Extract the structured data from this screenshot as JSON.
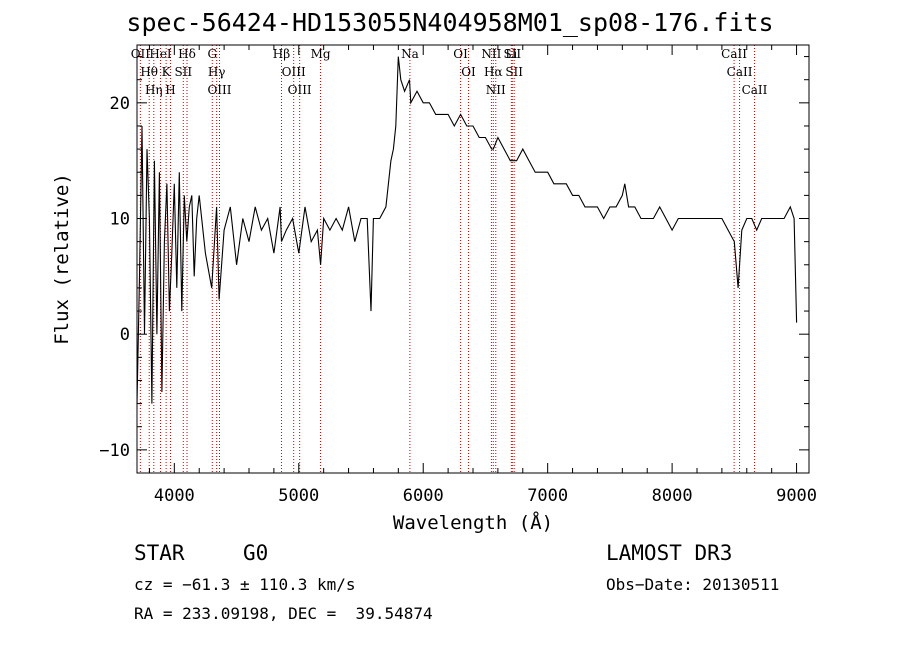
{
  "chart_data": {
    "type": "line",
    "title": "spec-56424-HD153055N404958M01_sp08-176.fits",
    "xlabel": "Wavelength (Å)",
    "ylabel": "Flux (relative)",
    "xlim": [
      3700,
      9100
    ],
    "ylim": [
      -12,
      25
    ],
    "xticks": [
      4000,
      5000,
      6000,
      7000,
      8000,
      9000
    ],
    "yticks": [
      -10,
      0,
      10,
      20
    ],
    "series": [
      {
        "name": "spectrum",
        "x": [
          3700,
          3720,
          3740,
          3760,
          3780,
          3800,
          3820,
          3840,
          3860,
          3880,
          3900,
          3920,
          3940,
          3960,
          3980,
          4000,
          4020,
          4040,
          4060,
          4080,
          4100,
          4120,
          4140,
          4160,
          4180,
          4200,
          4250,
          4300,
          4340,
          4360,
          4400,
          4450,
          4500,
          4550,
          4600,
          4650,
          4700,
          4750,
          4800,
          4850,
          4861,
          4900,
          4950,
          5000,
          5050,
          5100,
          5150,
          5175,
          5200,
          5250,
          5300,
          5350,
          5400,
          5450,
          5500,
          5550,
          5580,
          5600,
          5650,
          5700,
          5720,
          5740,
          5760,
          5780,
          5800,
          5820,
          5850,
          5890,
          5900,
          5950,
          6000,
          6050,
          6100,
          6150,
          6200,
          6250,
          6300,
          6350,
          6400,
          6450,
          6500,
          6550,
          6563,
          6600,
          6650,
          6700,
          6750,
          6800,
          6850,
          6900,
          6950,
          7000,
          7050,
          7100,
          7150,
          7200,
          7250,
          7300,
          7350,
          7400,
          7450,
          7500,
          7550,
          7600,
          7620,
          7650,
          7700,
          7750,
          7800,
          7850,
          7900,
          7950,
          8000,
          8050,
          8100,
          8150,
          8200,
          8250,
          8300,
          8350,
          8400,
          8450,
          8500,
          8530,
          8560,
          8600,
          8640,
          8680,
          8720,
          8760,
          8800,
          8850,
          8900,
          8950,
          8980,
          9000
        ],
        "values": [
          -6,
          5,
          18,
          0,
          16,
          10,
          -6,
          15,
          0,
          14,
          -5,
          8,
          13,
          2,
          7,
          13,
          4,
          14,
          2,
          12,
          8,
          11,
          12,
          5,
          10,
          12,
          7,
          4,
          11,
          3,
          9,
          11,
          6,
          10,
          8,
          11,
          9,
          10,
          7,
          11,
          8,
          9,
          10,
          7,
          11,
          8,
          9,
          6,
          10,
          9,
          10,
          9,
          11,
          8,
          10,
          10,
          2,
          10,
          10,
          11,
          13,
          15,
          16,
          18,
          24,
          22,
          21,
          22,
          20,
          21,
          20,
          20,
          19,
          19,
          19,
          18,
          19,
          18,
          18,
          17,
          17,
          16,
          16,
          17,
          16,
          15,
          15,
          16,
          15,
          14,
          14,
          14,
          13,
          13,
          13,
          12,
          12,
          11,
          11,
          11,
          10,
          11,
          11,
          12,
          13,
          11,
          11,
          10,
          10,
          10,
          11,
          10,
          9,
          10,
          10,
          10,
          10,
          10,
          10,
          10,
          10,
          9,
          8,
          4,
          9,
          10,
          10,
          9,
          10,
          10,
          10,
          10,
          10,
          11,
          10,
          1
        ]
      }
    ],
    "lines": [
      {
        "label": "Hθ",
        "x": 3798
      },
      {
        "label": "OII",
        "x": 3727
      },
      {
        "label": "K",
        "x": 3934
      },
      {
        "label": "Hη",
        "x": 3835
      },
      {
        "label": "HeI",
        "x": 3889
      },
      {
        "label": "H",
        "x": 3969
      },
      {
        "label": "SII",
        "x": 4072
      },
      {
        "label": "Hδ",
        "x": 4102
      },
      {
        "label": "OIII",
        "x": 4363
      },
      {
        "label": "Hγ",
        "x": 4340
      },
      {
        "label": "G",
        "x": 4305
      },
      {
        "label": "Hβ",
        "x": 4861
      },
      {
        "label": "OIII",
        "x": 5007
      },
      {
        "label": "OIII",
        "x": 4959
      },
      {
        "label": "Mg",
        "x": 5175
      },
      {
        "label": "Na",
        "x": 5893
      },
      {
        "label": "OI",
        "x": 6300
      },
      {
        "label": "OI",
        "x": 6364
      },
      {
        "label": "Hα",
        "x": 6563
      },
      {
        "label": "NII",
        "x": 6583
      },
      {
        "label": "NII",
        "x": 6548
      },
      {
        "label": "SII",
        "x": 6716
      },
      {
        "label": "Li",
        "x": 6708
      },
      {
        "label": "SII",
        "x": 6731
      },
      {
        "label": "CaII",
        "x": 8542
      },
      {
        "label": "CaII",
        "x": 8498
      },
      {
        "label": "CaII",
        "x": 8662
      }
    ]
  },
  "info": {
    "type_label": "STAR",
    "subclass": "G0",
    "survey": "LAMOST DR3",
    "cz": "cz = −61.3 ± 110.3 km/s",
    "obs_date": "Obs−Date: 20130511",
    "coords": "RA = 233.09198, DEC =  39.54874"
  },
  "colors": {
    "lines": "#cc0000",
    "spectrum": "#000000",
    "axes": "#000000"
  }
}
